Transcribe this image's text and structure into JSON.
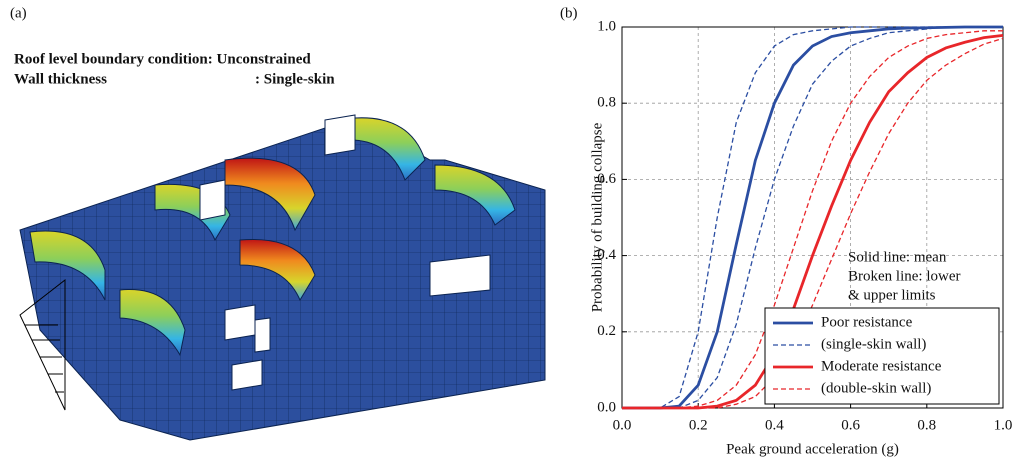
{
  "panel_a": {
    "label": "(a)",
    "roof_label": "Roof level boundary condition: Unconstrained",
    "wall_label": "Wall thickness",
    "wall_value": ": Single-skin"
  },
  "chart_data": {
    "type": "line",
    "panel_label": "(b)",
    "x_label": "Peak ground acceleration (g)",
    "y_label": "Probability of building collapse",
    "annotations": [
      "Solid line: mean",
      "Broken line: lower",
      "& upper limits"
    ],
    "x": [
      0,
      0.05,
      0.1,
      0.15,
      0.2,
      0.25,
      0.3,
      0.35,
      0.4,
      0.45,
      0.5,
      0.55,
      0.6,
      0.65,
      0.7,
      0.75,
      0.8,
      0.85,
      0.9,
      0.95,
      1
    ],
    "series": [
      {
        "name": "Poor resistance",
        "color": "#2b4ea2",
        "dashed": false,
        "values": [
          0,
          0,
          0,
          0.005,
          0.06,
          0.2,
          0.43,
          0.65,
          0.8,
          0.9,
          0.95,
          0.975,
          0.985,
          0.99,
          0.995,
          0.997,
          0.998,
          0.999,
          1,
          1,
          1
        ]
      },
      {
        "name": "(single-skin wall)",
        "color": "#2b4ea2",
        "dashed": true,
        "values": [
          0,
          0,
          0,
          0.03,
          0.2,
          0.5,
          0.75,
          0.88,
          0.95,
          0.98,
          0.99,
          0.995,
          1,
          1,
          1,
          1,
          1,
          1,
          1,
          1,
          1
        ]
      },
      {
        "color": "#2b4ea2",
        "dashed": true,
        "values": [
          0,
          0,
          0,
          0,
          0.02,
          0.08,
          0.22,
          0.42,
          0.6,
          0.74,
          0.85,
          0.91,
          0.95,
          0.97,
          0.985,
          0.99,
          0.995,
          1,
          1,
          1,
          1
        ]
      },
      {
        "name": "Moderate resistance",
        "color": "#e8262a",
        "dashed": false,
        "values": [
          0,
          0,
          0,
          0,
          0,
          0.005,
          0.02,
          0.06,
          0.14,
          0.26,
          0.4,
          0.53,
          0.65,
          0.75,
          0.83,
          0.88,
          0.92,
          0.945,
          0.96,
          0.972,
          0.978
        ]
      },
      {
        "name": "(double-skin wall)",
        "color": "#e8262a",
        "dashed": true,
        "values": [
          0,
          0,
          0,
          0,
          0.005,
          0.02,
          0.06,
          0.14,
          0.27,
          0.42,
          0.57,
          0.7,
          0.8,
          0.87,
          0.92,
          0.95,
          0.97,
          0.98,
          0.985,
          0.99,
          0.99
        ]
      },
      {
        "color": "#e8262a",
        "dashed": true,
        "values": [
          0,
          0,
          0,
          0,
          0,
          0,
          0.01,
          0.03,
          0.08,
          0.16,
          0.27,
          0.39,
          0.51,
          0.62,
          0.72,
          0.8,
          0.86,
          0.9,
          0.93,
          0.955,
          0.97
        ]
      }
    ],
    "xlim": [
      0,
      1
    ],
    "ylim": [
      0,
      1
    ],
    "xticks": [
      {
        "value": 0,
        "label": "0.0"
      },
      0.2,
      0.4,
      0.6,
      0.8,
      {
        "value": 1,
        "label": "1.0"
      }
    ],
    "yticks": [
      {
        "value": 0,
        "label": "0.0"
      },
      0.2,
      0.4,
      0.6,
      0.8,
      {
        "value": 1,
        "label": "1.0"
      }
    ],
    "grid": true
  }
}
